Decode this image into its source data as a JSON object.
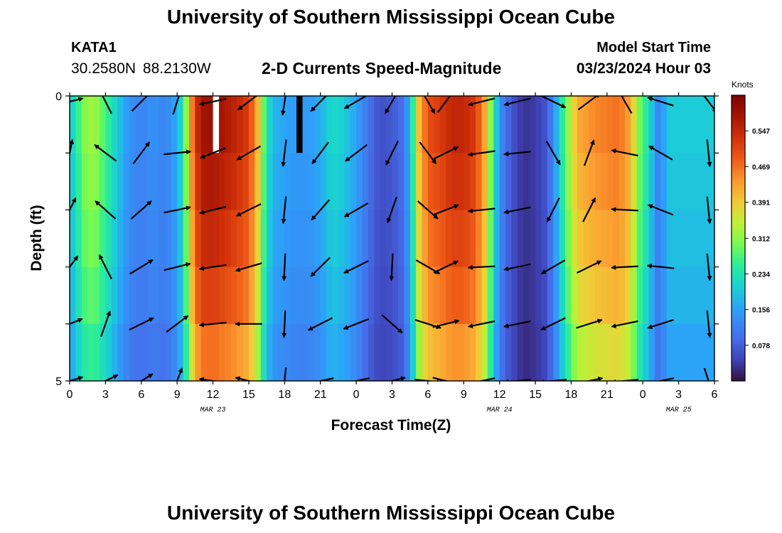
{
  "header": {
    "title": "University of Southern Mississippi Ocean Cube",
    "station": "KATA1",
    "coordinates": "30.2580N 88.2130W",
    "subtitle": "2-D Currents Speed-Magnitude",
    "model_start_label": "Model Start Time",
    "model_start_value": "03/23/2024 Hour 03"
  },
  "footer": {
    "title": "University of Southern Mississippi Ocean Cube"
  },
  "chart_data": {
    "type": "heatmap",
    "xlabel": "Forecast Time(Z)",
    "ylabel": "Depth (ft)",
    "x_tick_labels": [
      "0",
      "3",
      "6",
      "9",
      "12",
      "15",
      "18",
      "21",
      "0",
      "3",
      "6",
      "9",
      "12",
      "15",
      "18",
      "21",
      "0",
      "3",
      "6"
    ],
    "x_range_hours": [
      0,
      54
    ],
    "date_labels": [
      {
        "text": "MAR 23",
        "hour": 12
      },
      {
        "text": "MAR 24",
        "hour": 36
      },
      {
        "text": "MAR 25",
        "hour": 51
      }
    ],
    "y_tick_labels": [
      {
        "value": 0,
        "text": "0"
      },
      {
        "value": 5,
        "text": "5"
      }
    ],
    "y_range": [
      0,
      5
    ],
    "depth_bands": [
      0,
      1,
      2,
      3,
      4,
      5
    ],
    "colorbar": {
      "title": "Knots",
      "tick_values": [
        0.078,
        0.156,
        0.234,
        0.312,
        0.391,
        0.469,
        0.547
      ],
      "tick_labels": [
        "0.078",
        "0.156",
        "0.234",
        "0.312",
        "0.391",
        "0.469",
        "0.547"
      ],
      "range": [
        0,
        0.625
      ]
    },
    "speed_profile": [
      [
        0,
        0.2
      ],
      [
        0.5,
        0.23
      ],
      [
        1,
        0.3
      ],
      [
        2,
        0.33
      ],
      [
        3,
        0.27
      ],
      [
        4,
        0.2
      ],
      [
        5,
        0.14
      ],
      [
        6,
        0.12
      ],
      [
        7,
        0.14
      ],
      [
        8,
        0.12
      ],
      [
        9,
        0.17
      ],
      [
        9.6,
        0.26
      ],
      [
        10,
        0.4
      ],
      [
        10.5,
        0.52
      ],
      [
        11,
        0.58
      ],
      [
        12,
        0.59
      ],
      [
        13,
        0.57
      ],
      [
        14,
        0.55
      ],
      [
        15,
        0.52
      ],
      [
        15.7,
        0.42
      ],
      [
        16.4,
        0.25
      ],
      [
        17,
        0.18
      ],
      [
        18,
        0.16
      ],
      [
        19,
        0.15
      ],
      [
        20,
        0.15
      ],
      [
        21,
        0.17
      ],
      [
        22,
        0.22
      ],
      [
        23,
        0.2
      ],
      [
        24,
        0.16
      ],
      [
        25,
        0.1
      ],
      [
        26,
        0.06
      ],
      [
        27,
        0.07
      ],
      [
        28,
        0.1
      ],
      [
        28.6,
        0.2
      ],
      [
        29.1,
        0.38
      ],
      [
        30,
        0.5
      ],
      [
        31,
        0.52
      ],
      [
        32,
        0.55
      ],
      [
        33,
        0.55
      ],
      [
        34,
        0.52
      ],
      [
        34.8,
        0.42
      ],
      [
        35.5,
        0.25
      ],
      [
        36,
        0.14
      ],
      [
        36.5,
        0.1
      ],
      [
        37,
        0.07
      ],
      [
        38,
        0.03
      ],
      [
        39,
        0.04
      ],
      [
        40,
        0.07
      ],
      [
        40.8,
        0.18
      ],
      [
        41.6,
        0.3
      ],
      [
        42.5,
        0.42
      ],
      [
        44,
        0.45
      ],
      [
        46,
        0.47
      ],
      [
        47,
        0.42
      ],
      [
        47.5,
        0.32
      ],
      [
        48,
        0.27
      ],
      [
        48.6,
        0.22
      ],
      [
        49,
        0.14
      ],
      [
        49.5,
        0.12
      ],
      [
        50,
        0.2
      ]
    ],
    "depth_factors": [
      1.0,
      0.97,
      0.93,
      0.88,
      0.8
    ],
    "black_cell": {
      "hour": 19,
      "value": 0.0
    },
    "white_cell": {
      "hour": 12
    },
    "vectors": [
      {
        "hour": 0,
        "dir": [
          [
            0.97,
            -0.24
          ],
          [
            0.2,
            -0.98
          ],
          [
            0.45,
            -0.89
          ],
          [
            0.6,
            -0.8
          ],
          [
            0.93,
            -0.37
          ],
          [
            0.96,
            -0.28
          ]
        ]
      },
      {
        "hour": 3,
        "dir": [
          [
            -0.45,
            -0.89
          ],
          [
            -0.8,
            -0.6
          ],
          [
            -0.75,
            -0.66
          ],
          [
            -0.45,
            -0.89
          ],
          [
            0.33,
            -0.94
          ],
          [
            0.9,
            -0.43
          ]
        ]
      },
      {
        "hour": 6,
        "dir": [
          [
            0.7,
            -0.7
          ],
          [
            0.6,
            -0.8
          ],
          [
            0.75,
            -0.66
          ],
          [
            0.85,
            -0.52
          ],
          [
            0.9,
            -0.44
          ],
          [
            0.85,
            -0.52
          ]
        ]
      },
      {
        "hour": 9,
        "dir": [
          [
            0.3,
            -0.95
          ],
          [
            0.99,
            -0.1
          ],
          [
            0.98,
            -0.2
          ],
          [
            0.97,
            -0.24
          ],
          [
            0.8,
            -0.6
          ],
          [
            0.35,
            -0.94
          ]
        ]
      },
      {
        "hour": 12,
        "dir": [
          [
            -0.98,
            0.2
          ],
          [
            -0.93,
            0.37
          ],
          [
            -0.97,
            0.24
          ],
          [
            -0.99,
            0.15
          ],
          [
            -0.99,
            0.1
          ],
          [
            -0.99,
            -0.14
          ]
        ]
      },
      {
        "hour": 15,
        "dir": [
          [
            -0.8,
            0.6
          ],
          [
            -0.87,
            0.5
          ],
          [
            -0.9,
            0.44
          ],
          [
            -0.96,
            0.28
          ],
          [
            -0.99,
            0.0
          ],
          [
            -0.97,
            -0.24
          ]
        ]
      },
      {
        "hour": 18,
        "dir": [
          [
            -0.15,
            0.99
          ],
          [
            -0.12,
            0.99
          ],
          [
            -0.1,
            0.99
          ],
          [
            -0.05,
            1.0
          ],
          [
            -0.05,
            1.0
          ],
          [
            -0.1,
            0.99
          ]
        ]
      },
      {
        "hour": 21,
        "dir": [
          [
            -0.7,
            0.71
          ],
          [
            -0.6,
            0.8
          ],
          [
            -0.66,
            0.75
          ],
          [
            -0.71,
            0.7
          ],
          [
            -0.89,
            0.45
          ],
          [
            -0.98,
            0.2
          ]
        ]
      },
      {
        "hour": 24,
        "dir": [
          [
            -0.87,
            0.5
          ],
          [
            -0.8,
            0.6
          ],
          [
            -0.87,
            0.5
          ],
          [
            -0.9,
            0.44
          ],
          [
            -0.93,
            0.37
          ],
          [
            -0.98,
            0.2
          ]
        ]
      },
      {
        "hour": 27,
        "dir": [
          [
            -0.5,
            0.87
          ],
          [
            -0.45,
            0.89
          ],
          [
            -0.33,
            0.94
          ],
          [
            -0.05,
            1.0
          ],
          [
            0.75,
            0.66
          ],
          [
            0.97,
            -0.24
          ]
        ]
      },
      {
        "hour": 30,
        "dir": [
          [
            0.5,
            0.87
          ],
          [
            0.6,
            0.8
          ],
          [
            0.75,
            0.66
          ],
          [
            0.87,
            0.5
          ],
          [
            0.95,
            0.3
          ],
          [
            0.99,
            0.1
          ]
        ]
      },
      {
        "hour": 31.5,
        "dir": [
          [
            0.6,
            -0.8
          ],
          [
            0.9,
            -0.44
          ],
          [
            0.93,
            -0.37
          ],
          [
            0.9,
            -0.43
          ],
          [
            0.97,
            -0.24
          ],
          [
            0.97,
            0.24
          ]
        ]
      },
      {
        "hour": 34.5,
        "dir": [
          [
            -0.97,
            0.24
          ],
          [
            -0.99,
            0.14
          ],
          [
            -0.99,
            0.1
          ],
          [
            -0.99,
            0.05
          ],
          [
            -0.98,
            0.2
          ],
          [
            -0.98,
            0.2
          ]
        ]
      },
      {
        "hour": 37.5,
        "dir": [
          [
            -0.97,
            0.24
          ],
          [
            -0.99,
            0.1
          ],
          [
            -0.98,
            0.2
          ],
          [
            -0.98,
            0.2
          ],
          [
            -0.98,
            0.2
          ],
          [
            -0.99,
            0.1
          ]
        ]
      },
      {
        "hour": 40.5,
        "dir": [
          [
            0.9,
            0.43
          ],
          [
            0.5,
            0.87
          ],
          [
            -0.45,
            0.89
          ],
          [
            -0.87,
            0.5
          ],
          [
            -0.9,
            0.44
          ],
          [
            -0.99,
            0.1
          ]
        ]
      },
      {
        "hour": 43.5,
        "dir": [
          [
            0.8,
            -0.6
          ],
          [
            0.35,
            -0.94
          ],
          [
            0.45,
            -0.89
          ],
          [
            0.9,
            -0.44
          ],
          [
            0.95,
            -0.3
          ],
          [
            0.98,
            -0.2
          ]
        ]
      },
      {
        "hour": 46.5,
        "dir": [
          [
            -0.5,
            -0.87
          ],
          [
            -0.98,
            -0.2
          ],
          [
            -0.99,
            -0.05
          ],
          [
            -0.99,
            0.05
          ],
          [
            -0.98,
            0.2
          ],
          [
            -0.99,
            0.1
          ]
        ]
      },
      {
        "hour": 49.5,
        "dir": [
          [
            -0.95,
            -0.3
          ],
          [
            -0.87,
            -0.5
          ],
          [
            -0.93,
            -0.37
          ],
          [
            -0.99,
            -0.1
          ],
          [
            -0.95,
            0.3
          ],
          [
            -0.98,
            0.2
          ]
        ]
      },
      {
        "hour": 53.5,
        "dir": [
          [
            0.6,
            0.8
          ],
          [
            0.1,
            0.99
          ],
          [
            0.1,
            0.99
          ],
          [
            0.1,
            0.99
          ],
          [
            0.1,
            0.99
          ],
          [
            0.3,
            0.95
          ]
        ]
      }
    ]
  }
}
